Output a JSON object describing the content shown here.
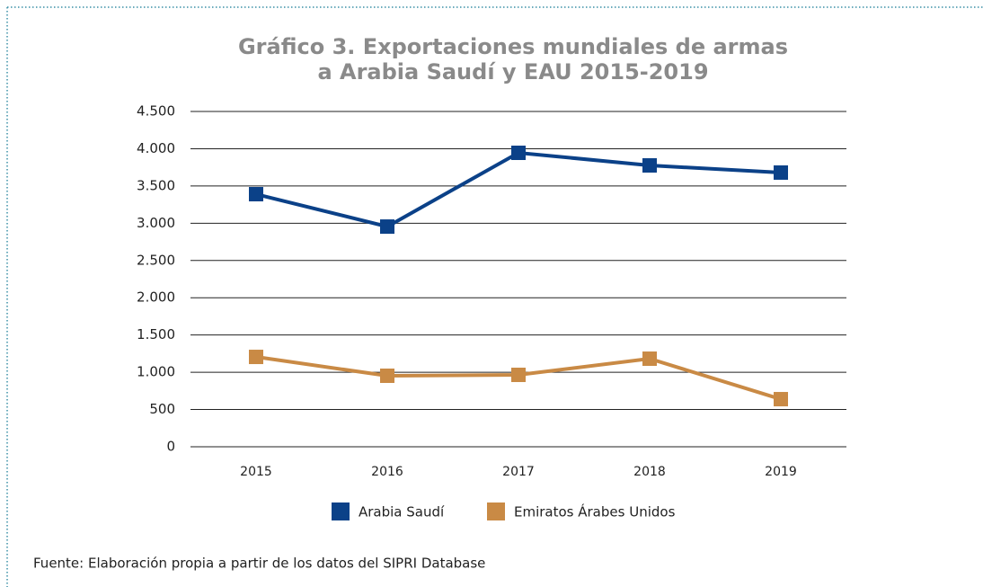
{
  "chart_data": {
    "type": "line",
    "title": [
      "Gráfico 3. Exportaciones mundiales de armas",
      "a Arabia Saudí y EAU 2015-2019"
    ],
    "categories": [
      "2015",
      "2016",
      "2017",
      "2018",
      "2019"
    ],
    "series": [
      {
        "name": "Arabia Saudí",
        "color": "#0b4188",
        "values": [
          3390,
          2955,
          3945,
          3776,
          3680
        ]
      },
      {
        "name": "Emiratos Árabes Unidos",
        "color": "#c98a45",
        "values": [
          1206,
          953,
          965,
          1182,
          639
        ]
      }
    ],
    "ylim": [
      0,
      4500
    ],
    "yticks": [
      0,
      500,
      {
        "value": 1000,
        "label": "1.000"
      },
      {
        "value": 1500,
        "label": "1.500"
      },
      {
        "value": 2000,
        "label": "2.000"
      },
      {
        "value": 2500,
        "label": "2.500"
      },
      {
        "value": 3000,
        "label": "3.000"
      },
      {
        "value": 3500,
        "label": "3.500"
      },
      {
        "value": 4000,
        "label": "4.000"
      },
      {
        "value": 4500,
        "label": "4.500"
      }
    ],
    "grid": true,
    "legend": "bottom",
    "source": "Fuente: Elaboración propia a partir de los datos del SIPRI Database"
  }
}
